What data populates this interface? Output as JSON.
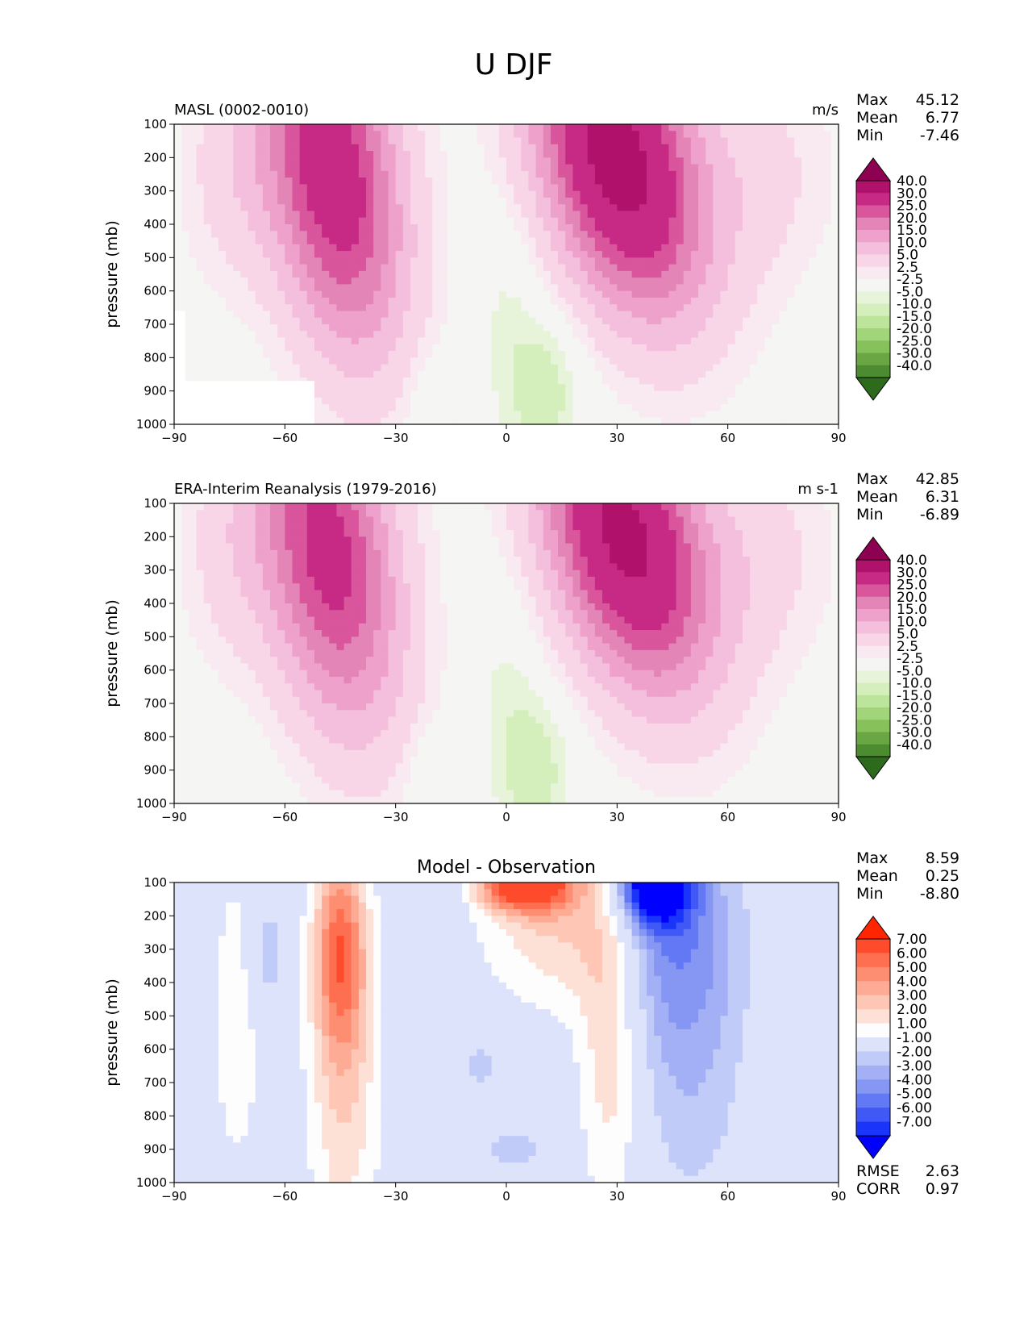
{
  "figure": {
    "title": "U DJF"
  },
  "chart_data": [
    {
      "type": "heatmap",
      "id": "model",
      "title": "MASL (0002-0010)",
      "units": "m/s",
      "xlabel": "",
      "ylabel": "pressure (mb)",
      "xlim": [
        -90,
        90
      ],
      "ylim": [
        1000,
        100
      ],
      "x_ticks": [
        "−90",
        "−60",
        "−30",
        "0",
        "30",
        "60",
        "90"
      ],
      "y_ticks": [
        "100",
        "200",
        "300",
        "400",
        "500",
        "600",
        "700",
        "800",
        "900",
        "1000"
      ],
      "stats": [
        {
          "label": "Max",
          "value": "45.12"
        },
        {
          "label": "Mean",
          "value": "6.77"
        },
        {
          "label": "Min",
          "value": "-7.46"
        }
      ],
      "colorbar": {
        "levels": [
          -40,
          -30,
          -25,
          -20,
          -15,
          -10,
          -5,
          -2.5,
          2.5,
          5,
          10,
          15,
          20,
          25,
          30,
          40
        ],
        "labels": [
          "40.0",
          "30.0",
          "25.0",
          "20.0",
          "15.0",
          "10.0",
          "5.0",
          "2.5",
          "-2.5",
          "-5.0",
          "-10.0",
          "-15.0",
          "-20.0",
          "-25.0",
          "-30.0",
          "-40.0"
        ],
        "colors": [
          "#8e0152",
          "#b0126b",
          "#c72a85",
          "#d9559c",
          "#e485b7",
          "#eea1cb",
          "#f4bedd",
          "#f8d6e8",
          "#f9eaf2",
          "#f5f5f3",
          "#e8f4da",
          "#d4eebc",
          "#bce49a",
          "#a2d479",
          "#86c15b",
          "#6aa644",
          "#4d8b31",
          "#2d6a1c"
        ]
      },
      "jets": [
        {
          "lat": -47,
          "p": 250,
          "max": 36
        },
        {
          "lat": 30,
          "p": 200,
          "max": 45.12
        }
      ],
      "easterlies": [
        {
          "lat": 10,
          "p": 900,
          "min": -7.46
        },
        {
          "lat": -20,
          "p": 950,
          "min": -4
        }
      ]
    },
    {
      "type": "heatmap",
      "id": "obs",
      "title": "ERA-Interim Reanalysis (1979-2016)",
      "units": "m s-1",
      "xlabel": "",
      "ylabel": "pressure (mb)",
      "xlim": [
        -90,
        90
      ],
      "ylim": [
        1000,
        100
      ],
      "x_ticks": [
        "−90",
        "−60",
        "−30",
        "0",
        "30",
        "60",
        "90"
      ],
      "y_ticks": [
        "100",
        "200",
        "300",
        "400",
        "500",
        "600",
        "700",
        "800",
        "900",
        "1000"
      ],
      "stats": [
        {
          "label": "Max",
          "value": "42.85"
        },
        {
          "label": "Mean",
          "value": "6.31"
        },
        {
          "label": "Min",
          "value": "-6.89"
        }
      ],
      "colorbar": {
        "levels": [
          -40,
          -30,
          -25,
          -20,
          -15,
          -10,
          -5,
          -2.5,
          2.5,
          5,
          10,
          15,
          20,
          25,
          30,
          40
        ],
        "labels": [
          "40.0",
          "30.0",
          "25.0",
          "20.0",
          "15.0",
          "10.0",
          "5.0",
          "2.5",
          "-2.5",
          "-5.0",
          "-10.0",
          "-15.0",
          "-20.0",
          "-25.0",
          "-30.0",
          "-40.0"
        ],
        "colors": [
          "#8e0152",
          "#b0126b",
          "#c72a85",
          "#d9559c",
          "#e485b7",
          "#eea1cb",
          "#f4bedd",
          "#f8d6e8",
          "#f9eaf2",
          "#f5f5f3",
          "#e8f4da",
          "#d4eebc",
          "#bce49a",
          "#a2d479",
          "#86c15b",
          "#6aa644",
          "#4d8b31",
          "#2d6a1c"
        ]
      },
      "jets": [
        {
          "lat": -48,
          "p": 250,
          "max": 33
        },
        {
          "lat": 32,
          "p": 200,
          "max": 42.85
        }
      ],
      "easterlies": [
        {
          "lat": 8,
          "p": 900,
          "min": -6.89
        },
        {
          "lat": -20,
          "p": 950,
          "min": -4
        }
      ]
    },
    {
      "type": "heatmap",
      "id": "diff",
      "title": "Model - Observation",
      "units": "",
      "xlabel": "",
      "ylabel": "pressure (mb)",
      "xlim": [
        -90,
        90
      ],
      "ylim": [
        1000,
        100
      ],
      "x_ticks": [
        "−90",
        "−60",
        "−30",
        "0",
        "30",
        "60",
        "90"
      ],
      "y_ticks": [
        "100",
        "200",
        "300",
        "400",
        "500",
        "600",
        "700",
        "800",
        "900",
        "1000"
      ],
      "stats": [
        {
          "label": "Max",
          "value": "8.59"
        },
        {
          "label": "Mean",
          "value": "0.25"
        },
        {
          "label": "Min",
          "value": "-8.80"
        }
      ],
      "extra_stats": [
        {
          "label": "RMSE",
          "value": "2.63"
        },
        {
          "label": "CORR",
          "value": "0.97"
        }
      ],
      "colorbar": {
        "levels": [
          -7,
          -6,
          -5,
          -4,
          -3,
          -2,
          -1,
          1,
          2,
          3,
          4,
          5,
          6,
          7
        ],
        "labels": [
          "7.00",
          "6.00",
          "5.00",
          "4.00",
          "3.00",
          "2.00",
          "1.00",
          "-1.00",
          "-2.00",
          "-3.00",
          "-4.00",
          "-5.00",
          "-6.00",
          "-7.00"
        ],
        "colors": [
          "#fe2600",
          "#fe4b2b",
          "#fd6f50",
          "#fd8e72",
          "#fdab94",
          "#fdc6b5",
          "#fde1d7",
          "#fdfdfd",
          "#dde3fa",
          "#c1cbf7",
          "#a3b0f5",
          "#8596f3",
          "#6378f4",
          "#4058f6",
          "#1b34f9",
          "#0000ff"
        ]
      }
    }
  ],
  "colors": {
    "background": "#ffffff",
    "axes": "#000000",
    "neutral_fill": "#f5f5f3",
    "diff_neutral": "#fdfdfd"
  }
}
